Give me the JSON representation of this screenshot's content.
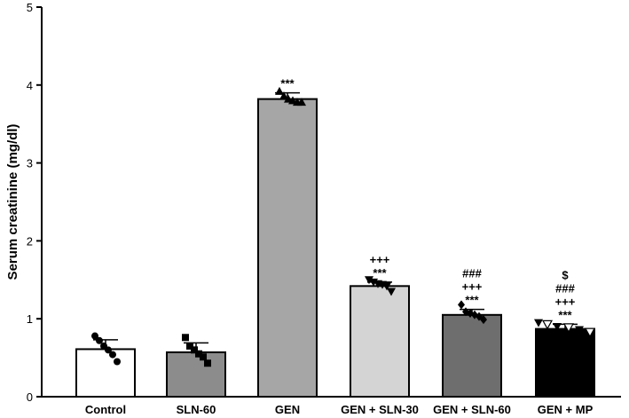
{
  "chart_data": {
    "type": "bar",
    "ylabel": "Serum creatinine (mg/dl)",
    "ylim": [
      0,
      5
    ],
    "yticks": [
      "0",
      "1",
      "2",
      "3",
      "4",
      "5"
    ],
    "categories": [
      "Control",
      "SLN-60",
      "GEN",
      "GEN + SLN-30",
      "GEN + SLN-60",
      "GEN + MP"
    ],
    "values": [
      0.61,
      0.57,
      3.82,
      1.42,
      1.05,
      0.87
    ],
    "errors": [
      0.12,
      0.12,
      0.08,
      0.05,
      0.07,
      0.06
    ],
    "bar_colors": [
      "#ffffff",
      "#8c8c8c",
      "#a6a6a6",
      "#d4d4d4",
      "#6e6e6e",
      "#000000"
    ],
    "points": [
      [
        0.78,
        0.72,
        0.65,
        0.6,
        0.54,
        0.45
      ],
      [
        0.76,
        0.65,
        0.6,
        0.55,
        0.51,
        0.43
      ],
      [
        3.92,
        3.86,
        3.82,
        3.8,
        3.78,
        3.78
      ],
      [
        1.5,
        1.47,
        1.45,
        1.44,
        1.42,
        1.35
      ],
      [
        1.18,
        1.09,
        1.07,
        1.05,
        1.03,
        0.99
      ],
      [
        0.95,
        0.93,
        0.9,
        0.89,
        0.86,
        0.83
      ]
    ],
    "markers": [
      "circle",
      "square",
      "triangle-up",
      "triangle-down",
      "diamond",
      "mixed-triangle"
    ],
    "significance": [
      [],
      [],
      [
        "***"
      ],
      [
        "+++",
        "***"
      ],
      [
        "###",
        "+++",
        "***"
      ],
      [
        "$",
        "###",
        "+++",
        "***"
      ]
    ],
    "grid": false,
    "legend": "none"
  }
}
